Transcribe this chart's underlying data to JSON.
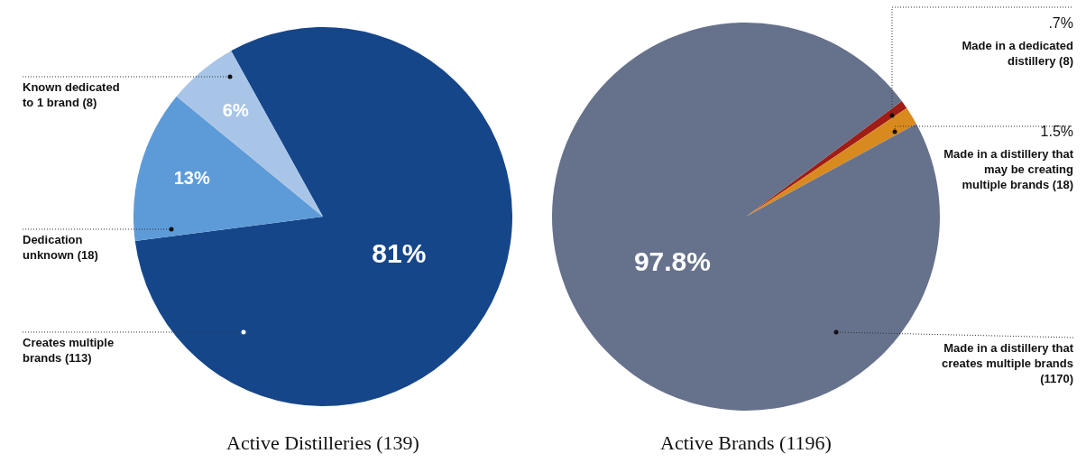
{
  "chart_data": [
    {
      "type": "pie",
      "title": "Active Distilleries (139)",
      "categories": [
        "Creates multiple brands (113)",
        "Dedication unknown (18)",
        "Known dedicated to 1 brand (8)"
      ],
      "values": [
        81,
        13,
        6
      ],
      "colors": [
        "#16468a",
        "#5d9bd8",
        "#a8c5e8"
      ],
      "value_labels": [
        "81%",
        "13%",
        "6%"
      ]
    },
    {
      "type": "pie",
      "title": "Active Brands (1196)",
      "categories": [
        "Made in a dedicated distillery (8)",
        "Made in a distillery that may be creating multiple brands (18)",
        "Made in a distillery that creates multiple brands (1170)"
      ],
      "values": [
        0.7,
        1.5,
        97.8
      ],
      "colors": [
        "#a01c14",
        "#d98a1f",
        "#66718b"
      ],
      "value_labels": [
        ".7%",
        "1.5%",
        "97.8%"
      ]
    }
  ]
}
